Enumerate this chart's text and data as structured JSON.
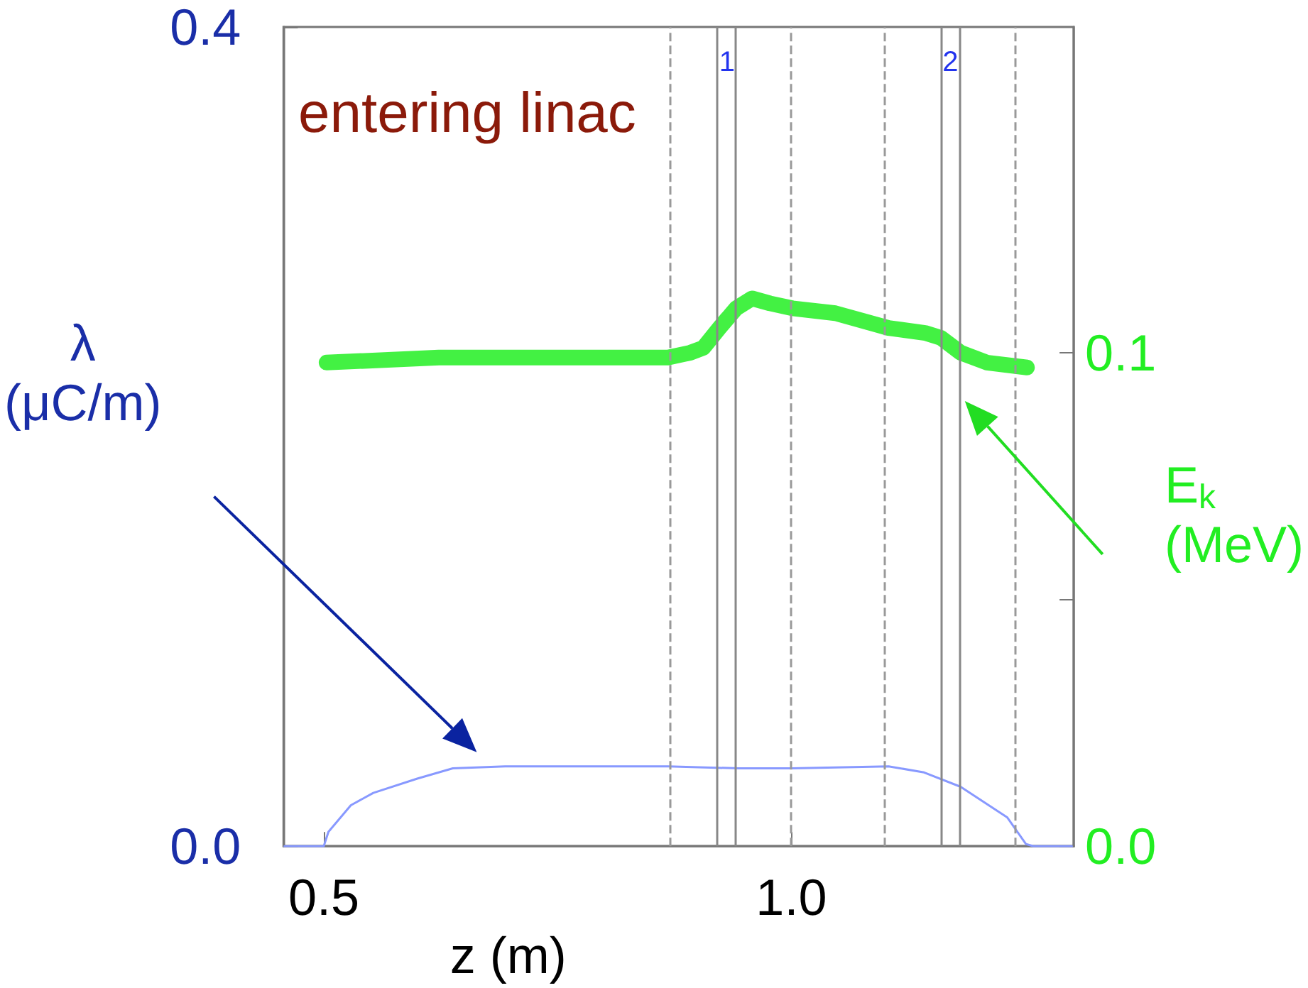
{
  "chart_data": {
    "type": "line",
    "xlabel": "z (m)",
    "ylabel": "λ (μC/m)",
    "y2label": "E$_{k}$ (MeV)",
    "xlim": [
      0.457,
      1.302
    ],
    "xticks": [
      {
        "value": 0.5,
        "label": "0.5"
      },
      {
        "value": 1.0,
        "label": "1.0"
      }
    ],
    "ylim": [
      0,
      0.4
    ],
    "yticks": [
      {
        "value": 0,
        "label": "0.0"
      },
      {
        "value": 0.4,
        "label": "0.4"
      }
    ],
    "y2lim": [
      0,
      0.166
    ],
    "y2ticks": [
      {
        "value": 0,
        "label": "0.0"
      },
      {
        "value": 0.05,
        "label": null
      },
      {
        "value": 0.1,
        "label": "0.1"
      }
    ],
    "grid": false,
    "marker": "none",
    "annotations": [
      "entering linac",
      "1",
      "2"
    ],
    "series": [
      {
        "color": "#8899ff",
        "x": [
          0.458,
          0.5,
          0.505,
          0.529,
          0.553,
          0.6,
          0.638,
          0.694,
          0.868,
          0.944,
          1.001,
          1.104,
          1.142,
          1.181,
          1.231,
          1.251,
          1.259,
          1.3
        ],
        "values": [
          0,
          0,
          0.007,
          0.02,
          0.026,
          0.033,
          0.038,
          0.039,
          0.039,
          0.038,
          0.038,
          0.039,
          0.036,
          0.029,
          0.014,
          0.001,
          0,
          0
        ]
      },
      {
        "color": "#22ee22",
        "axis": "y2",
        "x": [
          0.503,
          0.623,
          0.765,
          0.868,
          0.892,
          0.906,
          0.923,
          0.941,
          0.958,
          0.977,
          1.001,
          1.047,
          1.104,
          1.143,
          1.16,
          1.181,
          1.209,
          1.252
        ],
        "values": [
          0.098,
          0.099,
          0.099,
          0.099,
          0.1,
          0.101,
          0.105,
          0.109,
          0.111,
          0.11,
          0.109,
          0.108,
          0.105,
          0.104,
          0.103,
          0.1,
          0.098,
          0.097
        ]
      }
    ],
    "ref_lines": [
      {
        "axis": "x",
        "value": 0.868,
        "line_style": "dashed",
        "color": "#999999"
      },
      {
        "axis": "x",
        "value": 0.922,
        "line_style": "solid",
        "color": "#888888"
      },
      {
        "axis": "x",
        "value": 0.9406,
        "line_style": "solid",
        "color": "#888888"
      },
      {
        "axis": "x",
        "value": 1.001,
        "line_style": "dashed",
        "color": "#999999"
      },
      {
        "axis": "x",
        "value": 1.1,
        "line_style": "dashed",
        "color": "#999999"
      },
      {
        "axis": "x",
        "value": 1.159,
        "line_style": "solid",
        "color": "#888888"
      },
      {
        "axis": "x",
        "value": 1.181,
        "line_style": "solid",
        "color": "#888888"
      },
      {
        "axis": "x",
        "value": 1.24,
        "line_style": "dashed",
        "color": "#999999"
      }
    ]
  }
}
